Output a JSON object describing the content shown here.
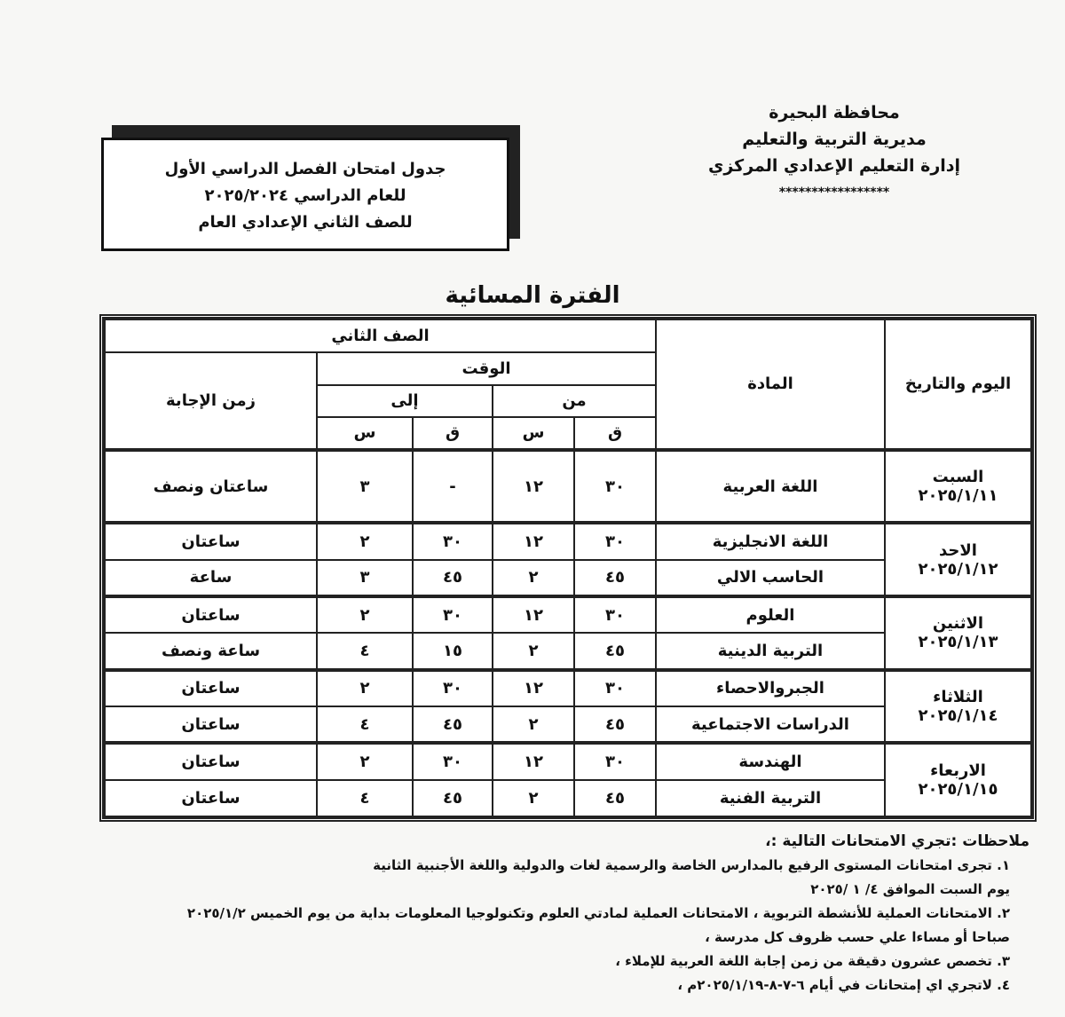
{
  "header": {
    "lines": [
      "محافظة البحيرة",
      "مديرية التربية والتعليم",
      "إدارة التعليم الإعدادي المركزي",
      "*****************"
    ]
  },
  "title_box": {
    "lines": [
      "جدول امتحان الفصل الدراسي الأول",
      "للعام الدراسي ٢٠٢٥/٢٠٢٤",
      "للصف الثاني الإعدادي العام"
    ]
  },
  "period": "الفترة المسائية",
  "table": {
    "headers": {
      "day_date": "اليوم والتاريخ",
      "subject": "المادة",
      "grade": "الصف الثاني",
      "time": "الوقت",
      "from": "من",
      "to": "إلى",
      "q": "ق",
      "s": "س",
      "duration": "زمن الإجابة"
    },
    "days": [
      {
        "day": "السبت",
        "date": "٢٠٢٥/١/١١",
        "rows": [
          {
            "subject": "اللغة العربية",
            "from_q": "٣٠",
            "from_s": "١٢",
            "to_q": "-",
            "to_s": "٣",
            "duration": "ساعتان ونصف"
          }
        ]
      },
      {
        "day": "الاحد",
        "date": "٢٠٢٥/١/١٢",
        "rows": [
          {
            "subject": "اللغة الانجليزية",
            "from_q": "٣٠",
            "from_s": "١٢",
            "to_q": "٣٠",
            "to_s": "٢",
            "duration": "ساعتان"
          },
          {
            "subject": "الحاسب الالي",
            "from_q": "٤٥",
            "from_s": "٢",
            "to_q": "٤٥",
            "to_s": "٣",
            "duration": "ساعة"
          }
        ]
      },
      {
        "day": "الاثنين",
        "date": "٢٠٢٥/١/١٣",
        "rows": [
          {
            "subject": "العلوم",
            "from_q": "٣٠",
            "from_s": "١٢",
            "to_q": "٣٠",
            "to_s": "٢",
            "duration": "ساعتان"
          },
          {
            "subject": "التربية الدينية",
            "from_q": "٤٥",
            "from_s": "٢",
            "to_q": "١٥",
            "to_s": "٤",
            "duration": "ساعة ونصف"
          }
        ]
      },
      {
        "day": "الثلاثاء",
        "date": "٢٠٢٥/١/١٤",
        "rows": [
          {
            "subject": "الجبروالاحصاء",
            "from_q": "٣٠",
            "from_s": "١٢",
            "to_q": "٣٠",
            "to_s": "٢",
            "duration": "ساعتان"
          },
          {
            "subject": "الدراسات الاجتماعية",
            "from_q": "٤٥",
            "from_s": "٢",
            "to_q": "٤٥",
            "to_s": "٤",
            "duration": "ساعتان"
          }
        ]
      },
      {
        "day": "الاربعاء",
        "date": "٢٠٢٥/١/١٥",
        "rows": [
          {
            "subject": "الهندسة",
            "from_q": "٣٠",
            "from_s": "١٢",
            "to_q": "٣٠",
            "to_s": "٢",
            "duration": "ساعتان"
          },
          {
            "subject": "التربية الفنية",
            "from_q": "٤٥",
            "from_s": "٢",
            "to_q": "٤٥",
            "to_s": "٤",
            "duration": "ساعتان"
          }
        ]
      }
    ]
  },
  "notes": {
    "title": "ملاحظات :تجري الامتحانات التالية :،",
    "items": [
      "١. تجرى امتحانات المستوى الرفيع بالمدارس الخاصة والرسمية لغات والدولية واللغة الأجنبية الثانية",
      "يوم السبت الموافق ٤/ ١ /٢٠٢٥",
      "٢. الامتحانات العملية للأنشطة التربوية ، الامتحانات العملية لمادتي العلوم وتكنولوجيا المعلومات بداية  من يوم الخميس ٢٠٢٥/١/٢",
      "صباحا أو مساءا علي حسب ظروف كل مدرسة ،",
      "٣. تخصص عشرون دقيقة من زمن إجابة اللغة العربية للإملاء ،",
      "٤. لاتجري اي  إمتحانات في أيام ٦-٧-٨-٢٠٢٥/١/١٩م ،"
    ]
  }
}
